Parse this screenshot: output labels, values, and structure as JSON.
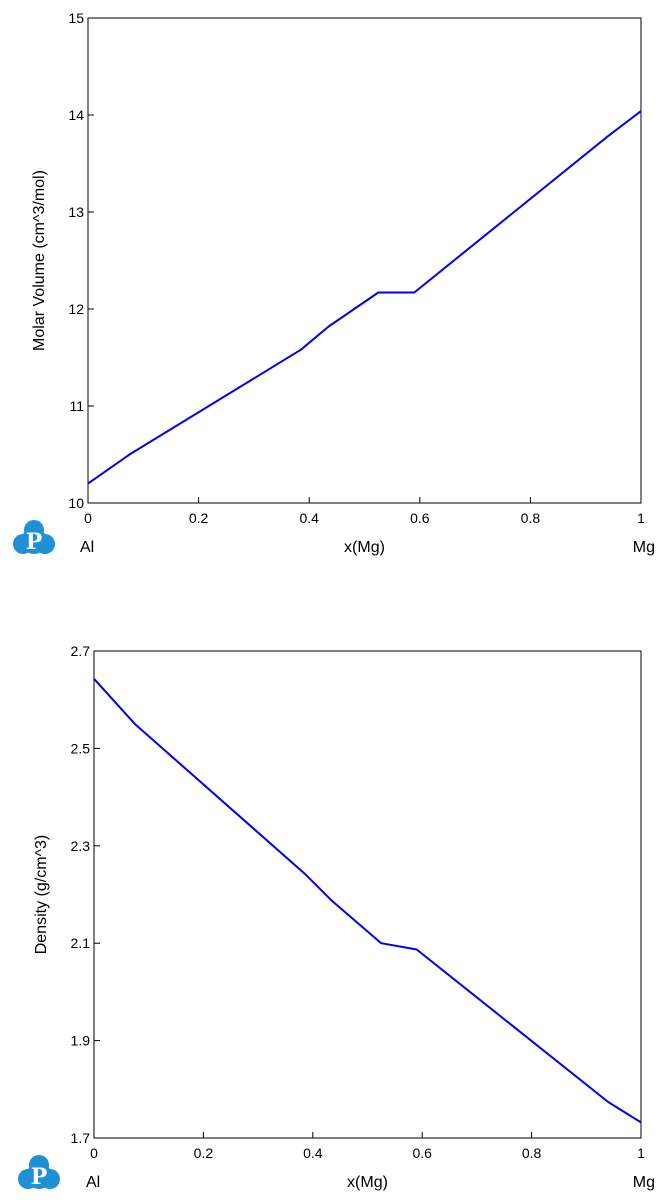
{
  "logo": {
    "letter": "P",
    "color": "#1e90d6"
  },
  "chart_data": [
    {
      "type": "line",
      "title": "",
      "xlabel": "x(Mg)",
      "ylabel": "Molar Volume (cm^3/mol)",
      "xlim": [
        0,
        1
      ],
      "ylim": [
        10,
        15
      ],
      "x_ticks": [
        0,
        0.2,
        0.4,
        0.6,
        0.8,
        1
      ],
      "y_ticks": [
        10,
        11,
        12,
        13,
        14,
        15
      ],
      "x_tick_labels": [
        "0",
        "0.2",
        "0.4",
        "0.6",
        "0.8",
        "1"
      ],
      "y_tick_labels": [
        "10",
        "11",
        "12",
        "13",
        "14",
        "15"
      ],
      "left_end_label": "Al",
      "right_end_label": "Mg",
      "grid": false,
      "line_color": "#0000ee",
      "series": [
        {
          "x": [
            0,
            0.075,
            0.385,
            0.435,
            0.525,
            0.59,
            0.94,
            1
          ],
          "y": [
            10.2,
            10.5,
            11.58,
            11.82,
            12.17,
            12.17,
            13.78,
            14.04
          ]
        }
      ]
    },
    {
      "type": "line",
      "title": "",
      "xlabel": "x(Mg)",
      "ylabel": "Density (g/cm^3)",
      "xlim": [
        0,
        1
      ],
      "ylim": [
        1.7,
        2.7
      ],
      "x_ticks": [
        0,
        0.2,
        0.4,
        0.6,
        0.8,
        1
      ],
      "y_ticks": [
        1.7,
        1.9,
        2.1,
        2.3,
        2.5,
        2.7
      ],
      "x_tick_labels": [
        "0",
        "0.2",
        "0.4",
        "0.6",
        "0.8",
        "1"
      ],
      "y_tick_labels": [
        "1.7",
        "1.9",
        "2.1",
        "2.3",
        "2.5",
        "2.7"
      ],
      "left_end_label": "Al",
      "right_end_label": "Mg",
      "grid": false,
      "line_color": "#0000ee",
      "series": [
        {
          "x": [
            0,
            0.075,
            0.385,
            0.435,
            0.525,
            0.59,
            0.94,
            1
          ],
          "y": [
            2.643,
            2.55,
            2.243,
            2.187,
            2.1,
            2.087,
            1.774,
            1.732
          ]
        }
      ]
    }
  ]
}
